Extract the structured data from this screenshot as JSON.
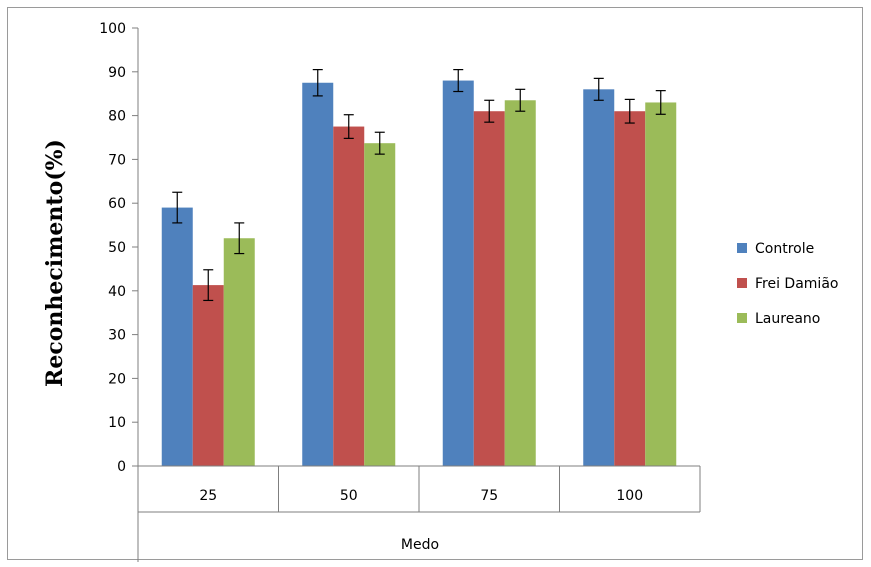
{
  "chart_data": {
    "type": "bar",
    "title": "",
    "xlabel": "Medo",
    "ylabel": "Reconhecimento(%)",
    "ylim": [
      0,
      100
    ],
    "yticks": [
      "0",
      "10",
      "20",
      "30",
      "40",
      "50",
      "60",
      "70",
      "80",
      "90",
      "100"
    ],
    "categories": [
      "25",
      "50",
      "75",
      "100"
    ],
    "grid": false,
    "legend_position": "right",
    "series": [
      {
        "name": "Controle",
        "color": "#4F81BD",
        "values": [
          59,
          87.5,
          88,
          86
        ],
        "errors": [
          3.5,
          3,
          2.5,
          2.5
        ]
      },
      {
        "name": "Frei Damião",
        "color": "#C0504D",
        "values": [
          41.3,
          77.5,
          81,
          81
        ],
        "errors": [
          3.5,
          2.7,
          2.5,
          2.7
        ]
      },
      {
        "name": "Laureano",
        "color": "#9BBB59",
        "values": [
          52,
          73.7,
          83.5,
          83
        ],
        "errors": [
          3.5,
          2.5,
          2.5,
          2.7
        ]
      }
    ]
  }
}
